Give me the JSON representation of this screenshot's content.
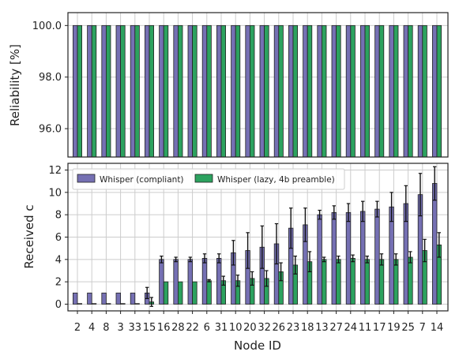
{
  "chart_data": [
    {
      "type": "bar",
      "ylabel": "Reliability [%]",
      "ylim": [
        94.9,
        100.5
      ],
      "yticks": [
        "96.0",
        "98.0",
        "100.0"
      ],
      "categories": [
        "2",
        "4",
        "8",
        "3",
        "33",
        "15",
        "16",
        "28",
        "22",
        "6",
        "31",
        "10",
        "20",
        "32",
        "26",
        "23",
        "18",
        "13",
        "27",
        "24",
        "11",
        "17",
        "19",
        "25",
        "7",
        "14"
      ],
      "series": [
        {
          "name": "Whisper (compliant)",
          "color": "#7570b3",
          "values": [
            100,
            100,
            100,
            100,
            100,
            100,
            100,
            100,
            100,
            100,
            100,
            100,
            100,
            100,
            100,
            100,
            100,
            100,
            100,
            100,
            100,
            100,
            100,
            100,
            100,
            100
          ]
        },
        {
          "name": "Whisper (lazy, 4b preamble)",
          "color": "#2ca25f",
          "values": [
            100,
            100,
            100,
            100,
            100,
            100,
            100,
            100,
            100,
            100,
            100,
            100,
            100,
            100,
            100,
            100,
            100,
            100,
            100,
            100,
            100,
            100,
            100,
            100,
            100,
            100
          ]
        }
      ],
      "grid": true
    },
    {
      "type": "bar",
      "xlabel": "Node ID",
      "ylabel": "Received c",
      "ylim": [
        -0.6,
        12.6
      ],
      "yticks": [
        "0",
        "2",
        "4",
        "6",
        "8",
        "10",
        "12"
      ],
      "categories": [
        "2",
        "4",
        "8",
        "3",
        "33",
        "15",
        "16",
        "28",
        "22",
        "6",
        "31",
        "10",
        "20",
        "32",
        "26",
        "23",
        "18",
        "13",
        "27",
        "24",
        "11",
        "17",
        "19",
        "25",
        "7",
        "14"
      ],
      "series": [
        {
          "name": "Whisper (compliant)",
          "color": "#7570b3",
          "values": [
            1,
            1,
            1,
            1,
            1,
            1,
            4,
            4,
            4,
            4.1,
            4.1,
            4.6,
            4.8,
            5.1,
            5.4,
            6.8,
            7.1,
            8,
            8.2,
            8.2,
            8.3,
            8.5,
            8.7,
            9,
            9.8,
            10.8
          ],
          "errors": [
            0,
            0,
            0,
            0,
            0,
            0.5,
            0.3,
            0.2,
            0.2,
            0.4,
            0.4,
            1.1,
            1.6,
            1.9,
            1.8,
            1.8,
            1.5,
            0.4,
            0.6,
            0.8,
            0.9,
            0.7,
            1.3,
            1.6,
            1.9,
            1.5
          ]
        },
        {
          "name": "Whisper (lazy, 4b preamble)",
          "color": "#2ca25f",
          "values": [
            0,
            0,
            0,
            0,
            0,
            0.2,
            2,
            2,
            2,
            2.1,
            2.1,
            2.1,
            2.3,
            2.3,
            2.9,
            3.5,
            3.8,
            4,
            4,
            4.1,
            4,
            4,
            4,
            4.2,
            4.8,
            5.3
          ],
          "errors": [
            0,
            0,
            0,
            0,
            0,
            0.4,
            0,
            0,
            0,
            0.1,
            0.4,
            0.5,
            0.6,
            0.7,
            0.8,
            0.8,
            0.9,
            0.2,
            0.3,
            0.3,
            0.3,
            0.5,
            0.5,
            0.5,
            1,
            1.1
          ]
        }
      ],
      "legend": "top-left",
      "grid": true
    }
  ]
}
